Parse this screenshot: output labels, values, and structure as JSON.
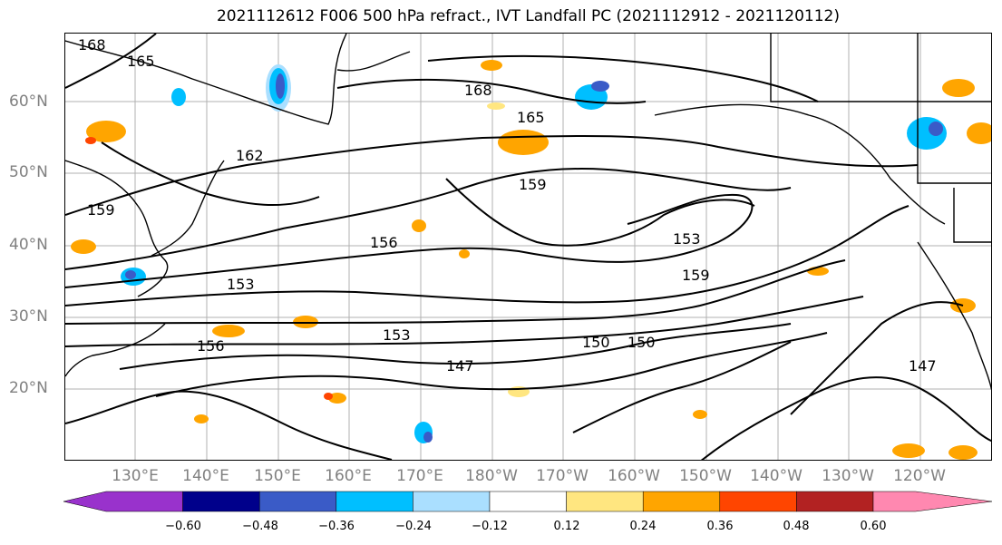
{
  "title": "2021112612 F006 500 hPa refract., IVT Landfall PC (2021112912 - 2021120112)",
  "lat_labels": [
    "60°N",
    "50°N",
    "40°N",
    "30°N",
    "20°N"
  ],
  "lon_labels": [
    "130°E",
    "140°E",
    "150°E",
    "160°E",
    "170°E",
    "180°W",
    "170°W",
    "160°W",
    "150°W",
    "140°W",
    "130°W",
    "120°W"
  ],
  "contour_labels": [
    "168",
    "165",
    "162",
    "159",
    "156",
    "153",
    "150",
    "147",
    "168",
    "165",
    "159",
    "156",
    "153",
    "159",
    "153",
    "150",
    "147"
  ],
  "colorbar": {
    "ticks": [
      "−0.60",
      "−0.48",
      "−0.36",
      "−0.24",
      "−0.12",
      "0.12",
      "0.24",
      "0.36",
      "0.48",
      "0.60"
    ],
    "colors": [
      "#9932cc",
      "#00008b",
      "#3a5bc7",
      "#00bfff",
      "#aadfff",
      "#ffffff",
      "#ffe680",
      "#ffa500",
      "#ff4500",
      "#b22222",
      "#ff88b0"
    ]
  }
}
